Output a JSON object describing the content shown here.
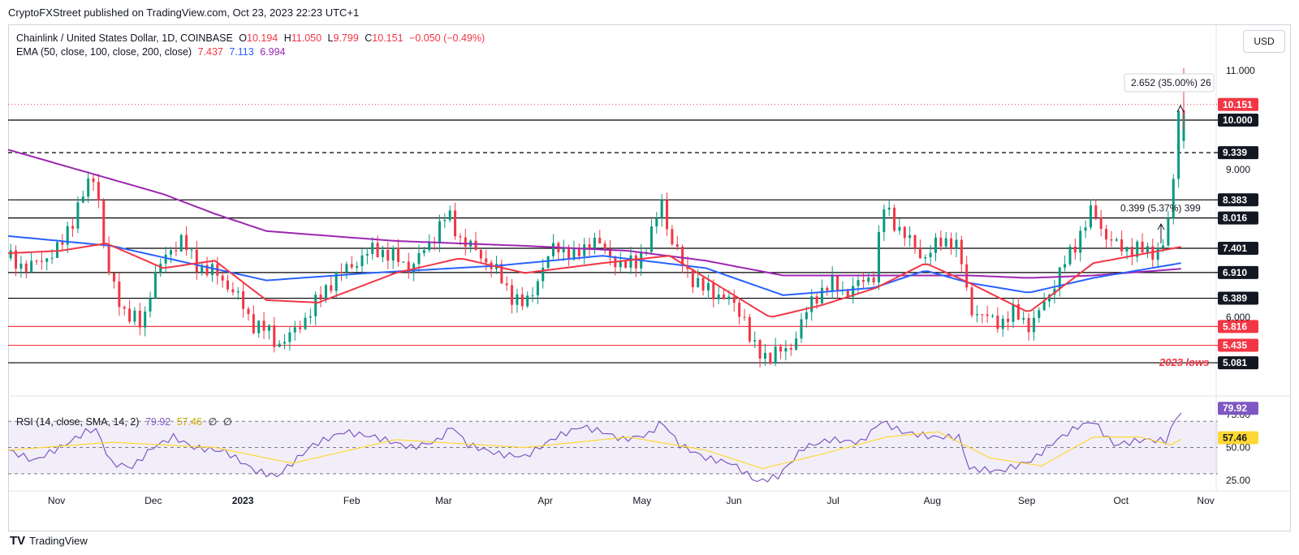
{
  "header": {
    "publisher": "CryptoFXStreet published on TradingView.com, Oct 23, 2023 22:23 UTC+1"
  },
  "legend": {
    "symbol": "Chainlink / United States Dollar, 1D, COINBASE",
    "open_label": "O",
    "open": "10.194",
    "high_label": "H",
    "high": "11.050",
    "low_label": "L",
    "low": "9.799",
    "close_label": "C",
    "close": "10.151",
    "change": "−0.050 (−0.49%)",
    "ema_label": "EMA (50, close, 100, close, 200, close)",
    "ema50": "7.437",
    "ema100": "7.113",
    "ema200": "6.994",
    "rsi_label": "RSI (14, close, SMA, 14, 2)",
    "rsi": "79.92",
    "rsi_sma": "57.46",
    "rsi_extra1": "∅",
    "rsi_extra2": "∅"
  },
  "currency_button": "USD",
  "footer": {
    "brand": "TradingView"
  },
  "colors": {
    "up": "#089981",
    "down": "#f23645",
    "ema50": "#f23645",
    "ema100": "#2962ff",
    "ema200": "#9c27b0",
    "rsi": "#7e57c2",
    "rsi_sma": "#fdd835",
    "hline": "#000000",
    "red_line": "#f23645"
  },
  "chart_data": {
    "type": "candlestick",
    "x_tick_labels": [
      "Nov",
      "Dec",
      "2023",
      "Feb",
      "Mar",
      "Apr",
      "May",
      "Jun",
      "Jul",
      "Aug",
      "Sep",
      "Oct",
      "Nov"
    ],
    "y_tick_labels": [
      "11.000",
      "9.000",
      "6.000"
    ],
    "ylim": [
      5.0,
      11.2
    ],
    "horizontal_levels": [
      {
        "value": 10.0,
        "label": "10.000",
        "color": "#000000",
        "style": "solid"
      },
      {
        "value": 9.339,
        "label": "9.339",
        "color": "#000000",
        "style": "dashed"
      },
      {
        "value": 8.383,
        "label": "8.383",
        "color": "#000000",
        "style": "solid"
      },
      {
        "value": 8.016,
        "label": "8.016",
        "color": "#000000",
        "style": "solid"
      },
      {
        "value": 7.401,
        "label": "7.401",
        "color": "#000000",
        "style": "solid"
      },
      {
        "value": 6.91,
        "label": "6.910",
        "color": "#000000",
        "style": "solid"
      },
      {
        "value": 6.389,
        "label": "6.389",
        "color": "#000000",
        "style": "solid"
      },
      {
        "value": 5.816,
        "label": "5.816",
        "color": "#f23645",
        "style": "solid"
      },
      {
        "value": 5.435,
        "label": "5.435",
        "color": "#f23645",
        "style": "solid"
      },
      {
        "value": 5.081,
        "label": "5.081",
        "color": "#000000",
        "style": "solid"
      }
    ],
    "current_price": {
      "value": 10.151,
      "label": "10.151"
    },
    "annotations": [
      {
        "text": "2023 lows",
        "color": "#f23645"
      },
      {
        "text": "2.652 (35.00%) 26"
      },
      {
        "text": "0.399 (5.37%) 399"
      }
    ],
    "ohlc_path": [
      [
        0,
        7.2
      ],
      [
        8,
        7.0
      ],
      [
        20,
        7.4
      ],
      [
        30,
        8.6
      ],
      [
        34,
        8.9
      ],
      [
        38,
        7.0
      ],
      [
        44,
        6.2
      ],
      [
        52,
        5.8
      ],
      [
        56,
        6.8
      ],
      [
        62,
        7.3
      ],
      [
        67,
        7.6
      ],
      [
        72,
        7.1
      ],
      [
        80,
        6.9
      ],
      [
        88,
        6.5
      ],
      [
        94,
        5.9
      ],
      [
        100,
        5.75
      ],
      [
        104,
        5.45
      ],
      [
        110,
        5.65
      ],
      [
        118,
        6.2
      ],
      [
        126,
        6.8
      ],
      [
        134,
        7.1
      ],
      [
        142,
        7.4
      ],
      [
        150,
        7.2
      ],
      [
        156,
        7.0
      ],
      [
        163,
        7.5
      ],
      [
        170,
        8.1
      ],
      [
        175,
        7.6
      ],
      [
        182,
        7.3
      ],
      [
        188,
        7.0
      ],
      [
        194,
        6.5
      ],
      [
        200,
        6.2
      ],
      [
        206,
        6.9
      ],
      [
        212,
        7.5
      ],
      [
        219,
        7.2
      ],
      [
        226,
        7.6
      ],
      [
        232,
        7.3
      ],
      [
        238,
        7.0
      ],
      [
        244,
        7.2
      ],
      [
        248,
        7.5
      ],
      [
        253,
        8.4
      ],
      [
        256,
        7.6
      ],
      [
        262,
        7.0
      ],
      [
        268,
        6.6
      ],
      [
        274,
        6.5
      ],
      [
        280,
        6.3
      ],
      [
        285,
        6.0
      ],
      [
        288,
        5.4
      ],
      [
        292,
        5.2
      ],
      [
        297,
        5.3
      ],
      [
        302,
        5.3
      ],
      [
        307,
        5.9
      ],
      [
        312,
        6.4
      ],
      [
        318,
        6.7
      ],
      [
        324,
        6.5
      ],
      [
        330,
        6.7
      ],
      [
        336,
        6.9
      ],
      [
        338,
        8.3
      ],
      [
        342,
        8.0
      ],
      [
        348,
        7.6
      ],
      [
        354,
        7.2
      ],
      [
        360,
        7.5
      ],
      [
        366,
        7.6
      ],
      [
        369,
        7.1
      ],
      [
        372,
        6.2
      ],
      [
        378,
        6.0
      ],
      [
        384,
        5.9
      ],
      [
        390,
        6.1
      ],
      [
        396,
        5.8
      ],
      [
        402,
        6.4
      ],
      [
        408,
        7.0
      ],
      [
        414,
        7.6
      ],
      [
        420,
        8.2
      ],
      [
        424,
        7.7
      ],
      [
        430,
        7.4
      ],
      [
        436,
        7.4
      ],
      [
        442,
        7.3
      ],
      [
        448,
        7.5
      ],
      [
        452,
        9.2
      ],
      [
        454,
        10.19
      ],
      [
        455,
        10.15
      ]
    ],
    "ema50_path": [
      [
        0,
        7.3
      ],
      [
        20,
        7.35
      ],
      [
        38,
        7.5
      ],
      [
        60,
        7.0
      ],
      [
        80,
        7.15
      ],
      [
        100,
        6.35
      ],
      [
        120,
        6.3
      ],
      [
        150,
        6.9
      ],
      [
        175,
        7.2
      ],
      [
        200,
        6.9
      ],
      [
        230,
        7.1
      ],
      [
        256,
        7.25
      ],
      [
        270,
        6.8
      ],
      [
        295,
        6.0
      ],
      [
        315,
        6.25
      ],
      [
        336,
        6.6
      ],
      [
        355,
        7.1
      ],
      [
        372,
        6.7
      ],
      [
        395,
        6.1
      ],
      [
        420,
        7.1
      ],
      [
        455,
        7.44
      ]
    ],
    "ema100_path": [
      [
        0,
        7.65
      ],
      [
        40,
        7.45
      ],
      [
        100,
        6.75
      ],
      [
        140,
        6.9
      ],
      [
        190,
        7.05
      ],
      [
        230,
        7.25
      ],
      [
        270,
        7.0
      ],
      [
        300,
        6.45
      ],
      [
        335,
        6.6
      ],
      [
        355,
        6.95
      ],
      [
        372,
        6.7
      ],
      [
        395,
        6.5
      ],
      [
        420,
        6.8
      ],
      [
        455,
        7.11
      ]
    ],
    "ema200_path": [
      [
        0,
        9.4
      ],
      [
        30,
        8.95
      ],
      [
        60,
        8.5
      ],
      [
        80,
        8.1
      ],
      [
        100,
        7.75
      ],
      [
        150,
        7.55
      ],
      [
        200,
        7.45
      ],
      [
        240,
        7.35
      ],
      [
        270,
        7.15
      ],
      [
        300,
        6.85
      ],
      [
        340,
        6.85
      ],
      [
        372,
        6.85
      ],
      [
        395,
        6.8
      ],
      [
        420,
        6.85
      ],
      [
        455,
        6.99
      ]
    ],
    "rsi": {
      "ylim": [
        20,
        85
      ],
      "y_tick_labels": [
        "75.00",
        "50.00",
        "25.00"
      ],
      "levels": [
        70,
        50,
        30
      ],
      "rsi_path": [
        [
          0,
          48
        ],
        [
          10,
          40
        ],
        [
          22,
          52
        ],
        [
          30,
          62
        ],
        [
          34,
          64
        ],
        [
          40,
          38
        ],
        [
          48,
          35
        ],
        [
          56,
          50
        ],
        [
          64,
          58
        ],
        [
          72,
          50
        ],
        [
          84,
          47
        ],
        [
          96,
          32
        ],
        [
          104,
          28
        ],
        [
          118,
          52
        ],
        [
          130,
          62
        ],
        [
          142,
          58
        ],
        [
          156,
          50
        ],
        [
          166,
          55
        ],
        [
          172,
          66
        ],
        [
          178,
          52
        ],
        [
          190,
          45
        ],
        [
          200,
          43
        ],
        [
          212,
          58
        ],
        [
          222,
          66
        ],
        [
          230,
          62
        ],
        [
          238,
          56
        ],
        [
          248,
          60
        ],
        [
          253,
          70
        ],
        [
          260,
          52
        ],
        [
          270,
          42
        ],
        [
          280,
          38
        ],
        [
          290,
          24
        ],
        [
          298,
          28
        ],
        [
          308,
          50
        ],
        [
          318,
          56
        ],
        [
          330,
          54
        ],
        [
          338,
          70
        ],
        [
          346,
          62
        ],
        [
          358,
          58
        ],
        [
          368,
          58
        ],
        [
          372,
          34
        ],
        [
          384,
          32
        ],
        [
          396,
          40
        ],
        [
          406,
          56
        ],
        [
          414,
          66
        ],
        [
          420,
          70
        ],
        [
          428,
          52
        ],
        [
          440,
          56
        ],
        [
          448,
          55
        ],
        [
          452,
          72
        ],
        [
          455,
          79.92
        ]
      ],
      "sma_path": [
        [
          0,
          48
        ],
        [
          40,
          54
        ],
        [
          80,
          50
        ],
        [
          110,
          38
        ],
        [
          150,
          56
        ],
        [
          200,
          50
        ],
        [
          240,
          58
        ],
        [
          270,
          48
        ],
        [
          292,
          34
        ],
        [
          315,
          45
        ],
        [
          340,
          58
        ],
        [
          360,
          62
        ],
        [
          380,
          42
        ],
        [
          400,
          36
        ],
        [
          420,
          58
        ],
        [
          438,
          58
        ],
        [
          450,
          52
        ],
        [
          455,
          57.46
        ]
      ]
    }
  }
}
